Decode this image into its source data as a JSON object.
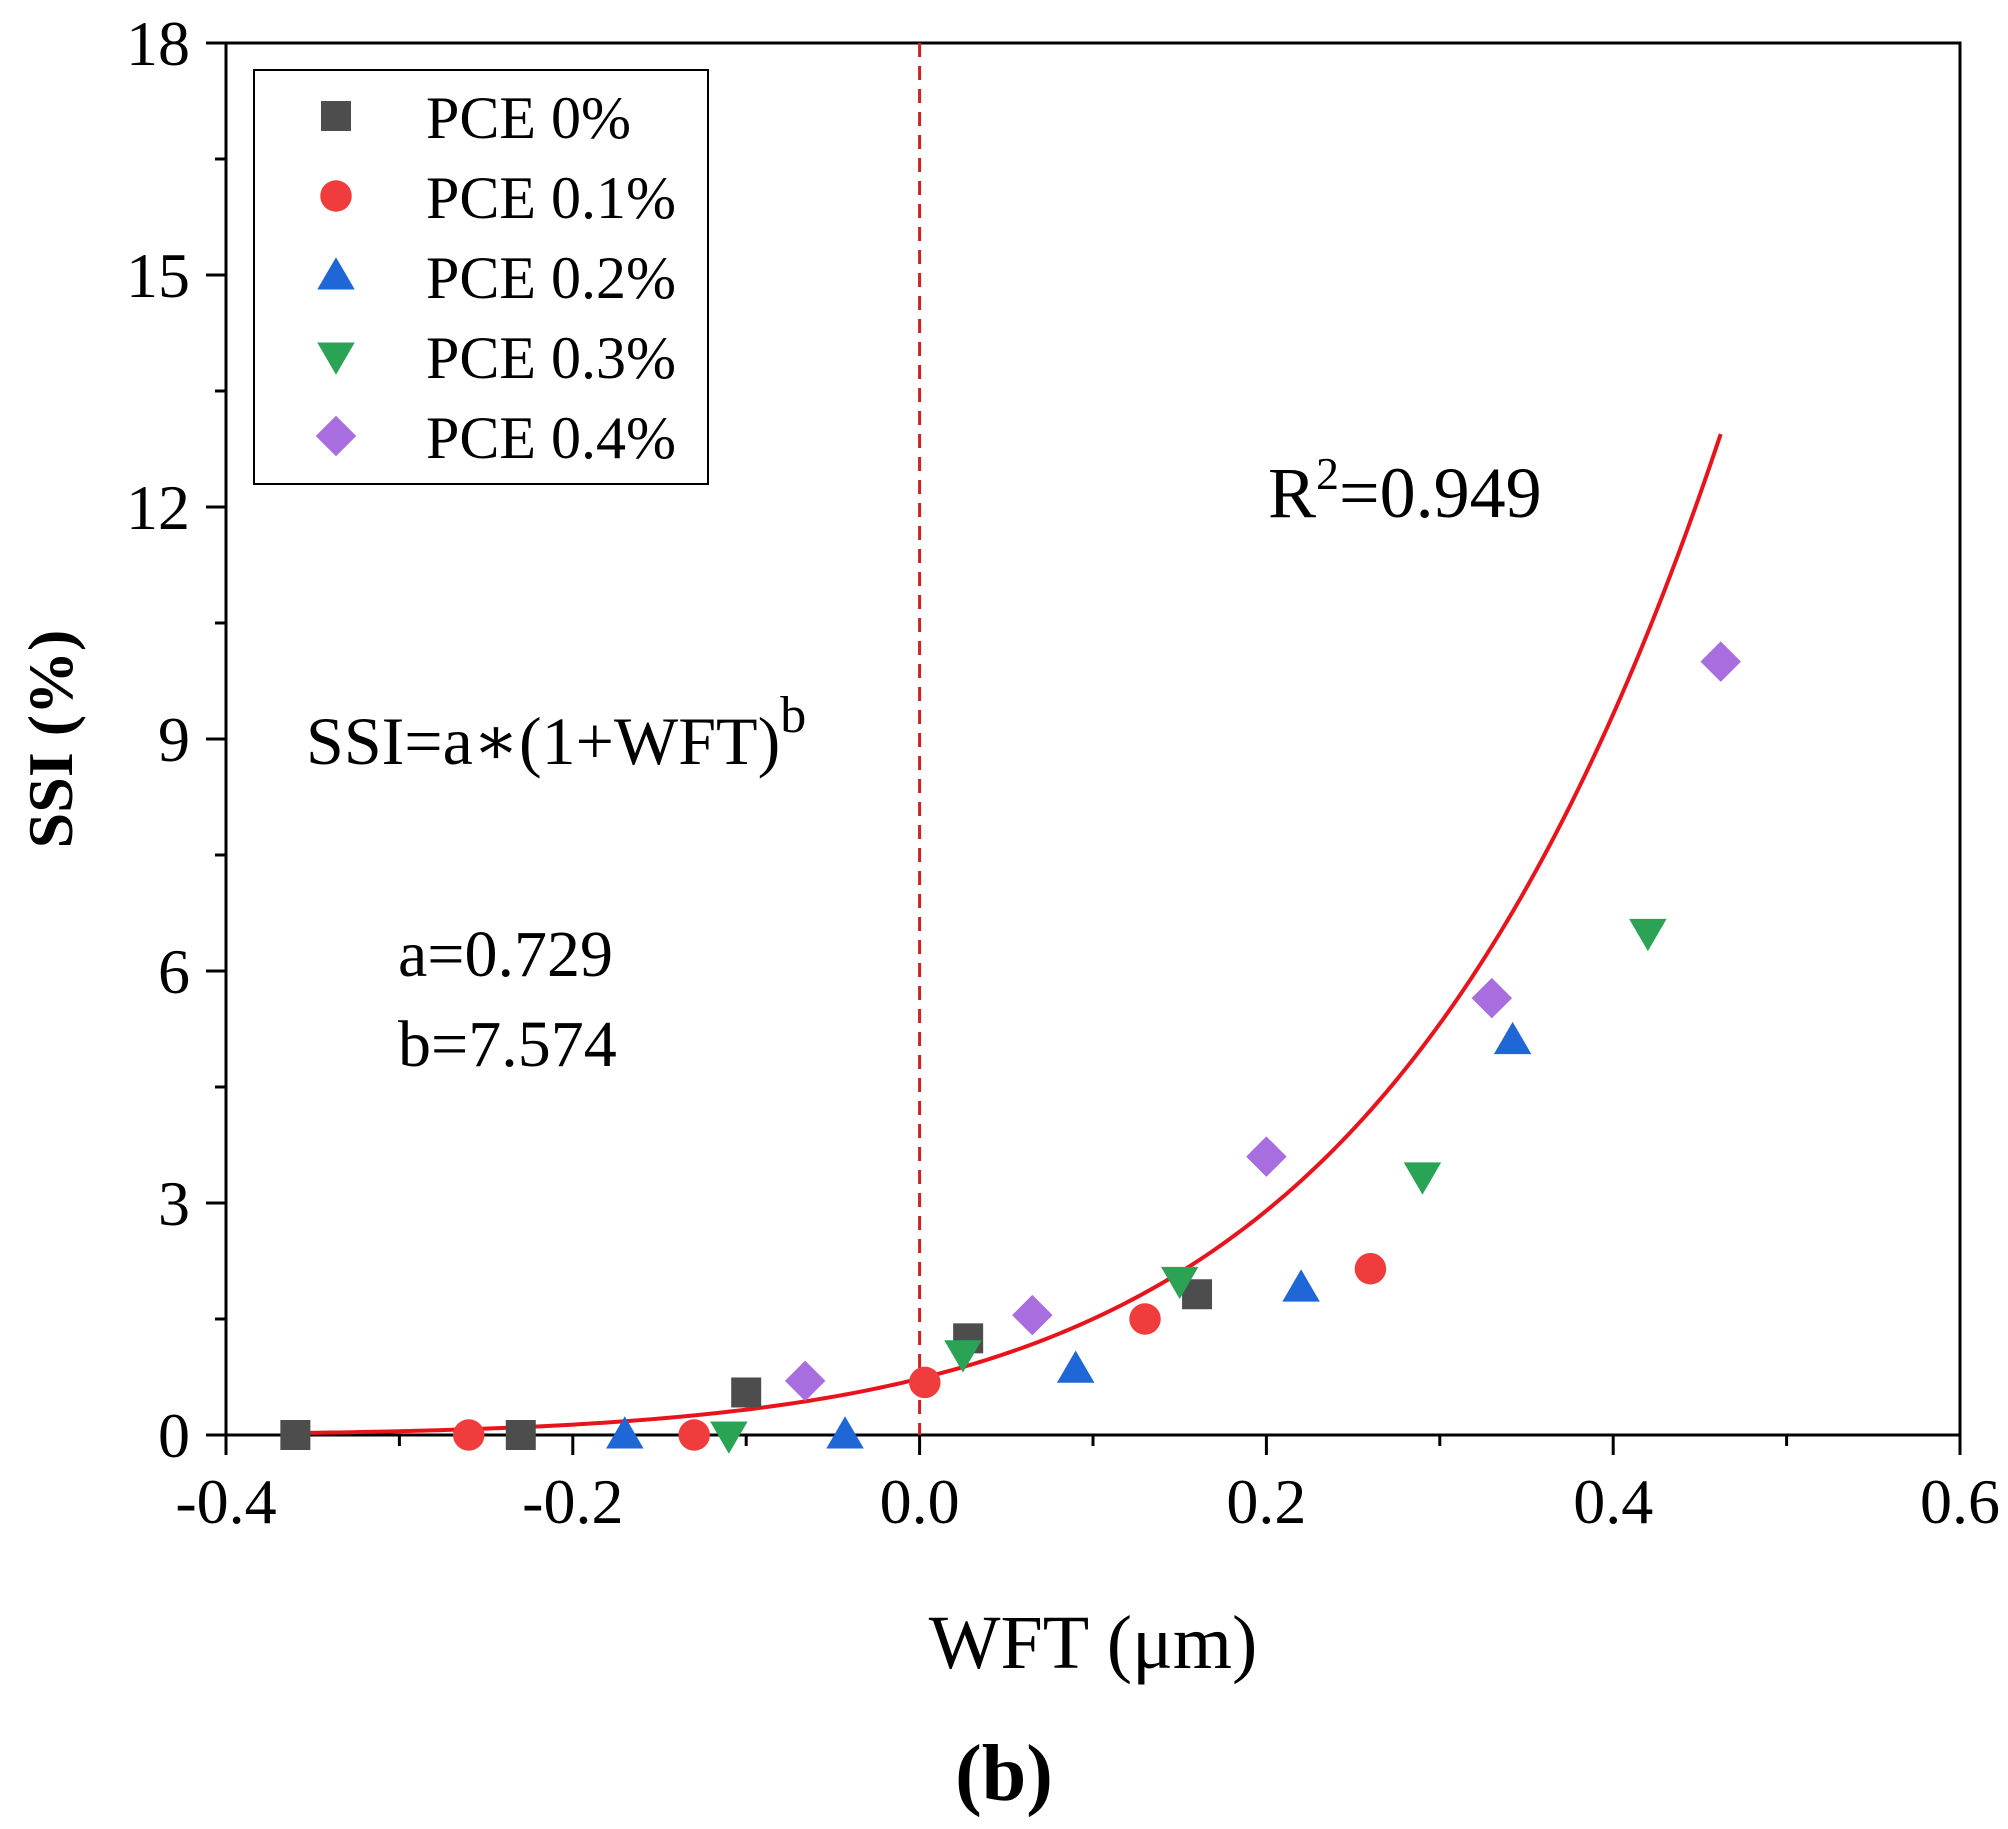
{
  "chart_data": {
    "type": "scatter",
    "title": "",
    "xlabel": "WFT (μm)",
    "ylabel": "SSI (%)",
    "xlim": [
      -0.4,
      0.6
    ],
    "ylim": [
      0,
      18
    ],
    "x_ticks": [
      -0.4,
      -0.2,
      0.0,
      0.2,
      0.4,
      0.6
    ],
    "x_tick_labels": [
      "-0.4",
      "-0.2",
      "0.0",
      "0.2",
      "0.4",
      "0.6"
    ],
    "y_ticks": [
      0,
      3,
      6,
      9,
      12,
      15,
      18
    ],
    "y_tick_labels": [
      "0",
      "3",
      "6",
      "9",
      "12",
      "15",
      "18"
    ],
    "legend_position": "top-left",
    "series": [
      {
        "name": "PCE 0%",
        "marker": "square",
        "color": "#4d4d4d",
        "points": [
          [
            -0.36,
            0.0
          ],
          [
            -0.23,
            0.0
          ],
          [
            -0.1,
            0.55
          ],
          [
            0.028,
            1.25
          ],
          [
            0.16,
            1.82
          ]
        ]
      },
      {
        "name": "PCE 0.1%",
        "marker": "circle",
        "color": "#f03c3c",
        "points": [
          [
            -0.26,
            0.0
          ],
          [
            -0.13,
            0.0
          ],
          [
            0.003,
            0.68
          ],
          [
            0.13,
            1.5
          ],
          [
            0.26,
            2.15
          ]
        ]
      },
      {
        "name": "PCE 0.2%",
        "marker": "triangle-up",
        "color": "#1f66d6",
        "points": [
          [
            -0.17,
            0.0
          ],
          [
            -0.043,
            0.0
          ],
          [
            0.09,
            0.85
          ],
          [
            0.22,
            1.9
          ],
          [
            0.342,
            5.1
          ]
        ]
      },
      {
        "name": "PCE 0.3%",
        "marker": "triangle-down",
        "color": "#2aa354",
        "points": [
          [
            -0.11,
            0.0
          ],
          [
            0.025,
            1.05
          ],
          [
            0.15,
            2.0
          ],
          [
            0.29,
            3.35
          ],
          [
            0.42,
            6.5
          ]
        ]
      },
      {
        "name": "PCE 0.4%",
        "marker": "diamond",
        "color": "#a86ee0",
        "points": [
          [
            -0.066,
            0.7
          ],
          [
            0.065,
            1.55
          ],
          [
            0.2,
            3.6
          ],
          [
            0.33,
            5.65
          ],
          [
            0.462,
            10.0
          ]
        ]
      }
    ],
    "fit": {
      "formula": "SSI=a*(1+WFT)^b",
      "a": 0.729,
      "b": 7.574,
      "color": "#e8141c",
      "x_range": [
        -0.36,
        0.462
      ]
    },
    "reference_line": {
      "x": 0.0,
      "style": "dashed",
      "color": "#cc2222"
    },
    "annotations": {
      "r2_label": "R",
      "r2_sup": "2",
      "r2_value": "=0.949",
      "formula_main": "SSI=a∗(1+WFT)",
      "formula_sup": "b",
      "a_text": "a=0.729",
      "b_text": "b=7.574"
    },
    "panel_label": "(b)"
  }
}
